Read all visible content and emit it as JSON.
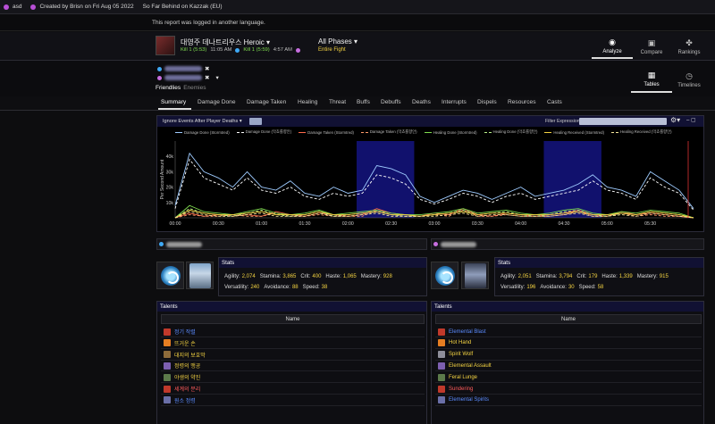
{
  "topbar": {
    "user": "asd",
    "created": "Created by Brisn on Fri Aug 05 2022",
    "guild": "So Far Behind on Kazzak (EU)"
  },
  "notice": "This report was logged in another language.",
  "encounter": {
    "boss_name": "대영주 데나트리우스 Heroic",
    "kill1_label": "Kill 1 (5:53)",
    "kill1_time": "11:05 AM",
    "kill2_label": "Kill 1 (5:59)",
    "kill2_time": "4:57 AM",
    "phases": "All Phases",
    "fight": "Entire Fight"
  },
  "nav": {
    "analyze": "Analyze",
    "compare": "Compare",
    "rankings": "Rankings",
    "tables": "Tables",
    "timelines": "Timelines"
  },
  "filters": {
    "friendlies": "Friendlies",
    "enemies": "Enemies"
  },
  "tabs": [
    "Summary",
    "Damage Done",
    "Damage Taken",
    "Healing",
    "Threat",
    "Buffs",
    "Debuffs",
    "Deaths",
    "Interrupts",
    "Dispels",
    "Resources",
    "Casts"
  ],
  "chart_toolbar": {
    "ignore": "Ignore Events After Player Deaths",
    "filter_label": "Filter Expression:"
  },
  "chart_data": {
    "type": "line",
    "ylabel": "Per Second Amount",
    "yticks": [
      "40k",
      "30k",
      "20k",
      "10k"
    ],
    "ylim": [
      0,
      50000
    ],
    "xlim": [
      0,
      360
    ],
    "xticks": [
      "00:00",
      "00:30",
      "01:00",
      "01:30",
      "02:00",
      "02:30",
      "03:00",
      "03:30",
      "04:00",
      "04:30",
      "05:00",
      "05:30"
    ],
    "highlight_ranges": [
      [
        126,
        166
      ],
      [
        256,
        296
      ]
    ],
    "x": [
      0,
      10,
      20,
      30,
      40,
      50,
      60,
      70,
      80,
      90,
      100,
      110,
      120,
      130,
      140,
      150,
      160,
      170,
      180,
      190,
      200,
      210,
      220,
      230,
      240,
      250,
      260,
      270,
      280,
      290,
      300,
      310,
      320,
      330,
      340,
      350,
      360
    ],
    "series": [
      {
        "name": "Damage Done (Stormtred)",
        "color": "#9ecbff",
        "dash": "none",
        "values": [
          8000,
          42000,
          30000,
          26000,
          20000,
          30000,
          20000,
          18000,
          24000,
          16000,
          14000,
          20000,
          16000,
          18000,
          34000,
          32000,
          28000,
          14000,
          10000,
          14000,
          18000,
          16000,
          12000,
          16000,
          20000,
          14000,
          16000,
          18000,
          22000,
          28000,
          20000,
          18000,
          14000,
          30000,
          24000,
          18000,
          6000
        ]
      },
      {
        "name": "Damage Done (막쵸를향안)",
        "color": "#ffffff",
        "dash": "3,2",
        "values": [
          6000,
          38000,
          26000,
          22000,
          18000,
          26000,
          18000,
          16000,
          20000,
          14000,
          12000,
          16000,
          14000,
          16000,
          28000,
          26000,
          22000,
          12000,
          9000,
          12000,
          16000,
          14000,
          10000,
          14000,
          16000,
          12000,
          14000,
          16000,
          18000,
          24000,
          18000,
          16000,
          12000,
          26000,
          20000,
          16000,
          5000
        ]
      },
      {
        "name": "Damage Taken (Stormtred)",
        "color": "#ff6a4a",
        "dash": "none",
        "values": [
          0,
          3000,
          1000,
          2000,
          1000,
          2000,
          1000,
          4000,
          2000,
          1000,
          3000,
          2000,
          1000,
          2000,
          6000,
          3000,
          2000,
          1000,
          3000,
          2000,
          6000,
          2000,
          1000,
          3000,
          2000,
          1000,
          2000,
          3000,
          5000,
          2000,
          1000,
          4000,
          2000,
          3000,
          2000,
          1000,
          0
        ]
      },
      {
        "name": "Damage Taken (막쵸를향안)",
        "color": "#ff9a6a",
        "dash": "3,2",
        "values": [
          0,
          2000,
          1000,
          1000,
          2000,
          1000,
          1000,
          3000,
          1000,
          1000,
          2000,
          1000,
          1000,
          1000,
          5000,
          2000,
          1000,
          1000,
          2000,
          1000,
          5000,
          1000,
          1000,
          2000,
          1000,
          1000,
          1000,
          2000,
          4000,
          1000,
          1000,
          3000,
          1000,
          2000,
          1000,
          1000,
          0
        ]
      },
      {
        "name": "Healing Done (Stormtred)",
        "color": "#7fdd4f",
        "dash": "none",
        "values": [
          0,
          8000,
          4000,
          3000,
          2000,
          4000,
          6000,
          3000,
          2000,
          3000,
          5000,
          2000,
          3000,
          4000,
          5000,
          3000,
          2000,
          2000,
          3000,
          4000,
          6000,
          3000,
          4000,
          5000,
          3000,
          2000,
          3000,
          5000,
          6000,
          3000,
          2000,
          4000,
          3000,
          5000,
          4000,
          3000,
          0
        ]
      },
      {
        "name": "Healing Done (막쵸를향안)",
        "color": "#b9f28a",
        "dash": "3,2",
        "values": [
          0,
          6000,
          3000,
          2000,
          1000,
          3000,
          5000,
          2000,
          1000,
          2000,
          4000,
          1000,
          2000,
          3000,
          4000,
          2000,
          1000,
          1000,
          2000,
          3000,
          5000,
          2000,
          3000,
          4000,
          2000,
          1000,
          2000,
          4000,
          5000,
          2000,
          1000,
          3000,
          2000,
          4000,
          3000,
          2000,
          0
        ]
      },
      {
        "name": "Healing Received (Stormtred)",
        "color": "#f5d442",
        "dash": "none",
        "values": [
          0,
          5000,
          3000,
          2000,
          2000,
          3000,
          4000,
          2000,
          2000,
          2000,
          4000,
          2000,
          2000,
          3000,
          4000,
          2000,
          2000,
          1000,
          2000,
          3000,
          4000,
          2000,
          3000,
          3000,
          2000,
          2000,
          2000,
          3000,
          4000,
          2000,
          2000,
          3000,
          2000,
          4000,
          3000,
          2000,
          0
        ]
      },
      {
        "name": "Healing Received (막쵸를향안)",
        "color": "#f7e79a",
        "dash": "3,2",
        "values": [
          0,
          4000,
          2000,
          1000,
          1000,
          2000,
          3000,
          1000,
          1000,
          1000,
          3000,
          1000,
          1000,
          2000,
          3000,
          1000,
          1000,
          1000,
          1000,
          2000,
          3000,
          1000,
          2000,
          2000,
          1000,
          1000,
          1000,
          2000,
          3000,
          1000,
          1000,
          2000,
          1000,
          3000,
          2000,
          1000,
          0
        ]
      }
    ]
  },
  "player1": {
    "stats_title": "Stats",
    "row1": [
      [
        "Agility:",
        "2,074"
      ],
      [
        "Stamina:",
        "3,865"
      ],
      [
        "Crit:",
        "400"
      ],
      [
        "Haste:",
        "1,065"
      ],
      [
        "Mastery:",
        "928"
      ]
    ],
    "row2": [
      [
        "Versatility:",
        "240"
      ],
      [
        "Avoidance:",
        "88"
      ],
      [
        "Speed:",
        "38"
      ]
    ],
    "talents_title": "Talents",
    "col_name": "Name",
    "talents": [
      {
        "name": "정기 작렬",
        "color": "#5b8cff",
        "icon": "#c0392b"
      },
      {
        "name": "뜨거운 손",
        "color": "#f5d442",
        "icon": "#e67e22"
      },
      {
        "name": "대지의 보호막",
        "color": "#f5d442",
        "icon": "#8e6b3a"
      },
      {
        "name": "정령의 맹공",
        "color": "#f5d442",
        "icon": "#7d5fb0"
      },
      {
        "name": "야생의 약진",
        "color": "#f5d442",
        "icon": "#5c7a4a"
      },
      {
        "name": "세계의 분리",
        "color": "#ff5b5b",
        "icon": "#c0392b"
      },
      {
        "name": "원소 정령",
        "color": "#5b8cff",
        "icon": "#6a6fa8"
      }
    ]
  },
  "player2": {
    "stats_title": "Stats",
    "row1": [
      [
        "Agility:",
        "2,051"
      ],
      [
        "Stamina:",
        "3,794"
      ],
      [
        "Crit:",
        "179"
      ],
      [
        "Haste:",
        "1,339"
      ],
      [
        "Mastery:",
        "915"
      ]
    ],
    "row2": [
      [
        "Versatility:",
        "196"
      ],
      [
        "Avoidance:",
        "30"
      ],
      [
        "Speed:",
        "58"
      ]
    ],
    "talents_title": "Talents",
    "col_name": "Name",
    "talents": [
      {
        "name": "Elemental Blast",
        "color": "#5b8cff",
        "icon": "#c0392b"
      },
      {
        "name": "Hot Hand",
        "color": "#f5d442",
        "icon": "#e67e22"
      },
      {
        "name": "Spirit Wolf",
        "color": "#f5d442",
        "icon": "#8e8e9a"
      },
      {
        "name": "Elemental Assault",
        "color": "#f5d442",
        "icon": "#7d5fb0"
      },
      {
        "name": "Feral Lunge",
        "color": "#f5d442",
        "icon": "#5c7a4a"
      },
      {
        "name": "Sundering",
        "color": "#ff5b5b",
        "icon": "#c0392b"
      },
      {
        "name": "Elemental Spirits",
        "color": "#5b8cff",
        "icon": "#6a6fa8"
      }
    ]
  }
}
